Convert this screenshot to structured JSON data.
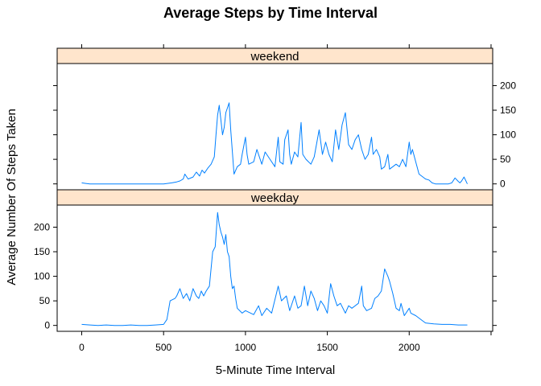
{
  "chart_data": {
    "type": "line",
    "title": "Average Steps by Time Interval",
    "xlabel": "5-Minute Time Interval",
    "ylabel": "Average Number Of Steps Taken",
    "xlim": [
      -150,
      2510
    ],
    "ylim": [
      -12,
      245
    ],
    "x_ticks": [
      0,
      500,
      1000,
      1500,
      2000
    ],
    "y_ticks": [
      0,
      50,
      100,
      150,
      200
    ],
    "grid": false,
    "colors": {
      "line": "#0080ff",
      "strip": "#ffe5cc"
    },
    "panels": [
      {
        "name": "weekend",
        "points": [
          [
            0,
            2
          ],
          [
            25,
            1
          ],
          [
            50,
            0
          ],
          [
            100,
            0
          ],
          [
            150,
            0
          ],
          [
            200,
            0
          ],
          [
            250,
            0
          ],
          [
            300,
            0
          ],
          [
            350,
            0
          ],
          [
            400,
            0
          ],
          [
            450,
            0
          ],
          [
            500,
            0
          ],
          [
            550,
            2
          ],
          [
            580,
            4
          ],
          [
            600,
            6
          ],
          [
            620,
            10
          ],
          [
            630,
            20
          ],
          [
            650,
            10
          ],
          [
            680,
            14
          ],
          [
            700,
            24
          ],
          [
            720,
            16
          ],
          [
            735,
            28
          ],
          [
            750,
            22
          ],
          [
            770,
            32
          ],
          [
            790,
            40
          ],
          [
            810,
            55
          ],
          [
            820,
            100
          ],
          [
            830,
            140
          ],
          [
            840,
            160
          ],
          [
            850,
            130
          ],
          [
            860,
            100
          ],
          [
            870,
            115
          ],
          [
            880,
            145
          ],
          [
            900,
            165
          ],
          [
            910,
            110
          ],
          [
            930,
            20
          ],
          [
            950,
            35
          ],
          [
            970,
            40
          ],
          [
            980,
            60
          ],
          [
            1000,
            95
          ],
          [
            1010,
            60
          ],
          [
            1020,
            40
          ],
          [
            1050,
            45
          ],
          [
            1070,
            70
          ],
          [
            1100,
            40
          ],
          [
            1120,
            65
          ],
          [
            1150,
            50
          ],
          [
            1180,
            35
          ],
          [
            1200,
            95
          ],
          [
            1210,
            45
          ],
          [
            1230,
            40
          ],
          [
            1240,
            90
          ],
          [
            1260,
            110
          ],
          [
            1270,
            60
          ],
          [
            1280,
            40
          ],
          [
            1300,
            65
          ],
          [
            1320,
            55
          ],
          [
            1340,
            125
          ],
          [
            1350,
            60
          ],
          [
            1370,
            50
          ],
          [
            1400,
            40
          ],
          [
            1420,
            55
          ],
          [
            1450,
            110
          ],
          [
            1470,
            60
          ],
          [
            1490,
            85
          ],
          [
            1510,
            60
          ],
          [
            1530,
            45
          ],
          [
            1550,
            110
          ],
          [
            1570,
            70
          ],
          [
            1590,
            120
          ],
          [
            1610,
            145
          ],
          [
            1630,
            80
          ],
          [
            1650,
            70
          ],
          [
            1670,
            90
          ],
          [
            1690,
            100
          ],
          [
            1710,
            70
          ],
          [
            1730,
            50
          ],
          [
            1750,
            60
          ],
          [
            1770,
            95
          ],
          [
            1780,
            60
          ],
          [
            1800,
            70
          ],
          [
            1820,
            55
          ],
          [
            1830,
            30
          ],
          [
            1850,
            35
          ],
          [
            1870,
            60
          ],
          [
            1880,
            30
          ],
          [
            1900,
            35
          ],
          [
            1920,
            40
          ],
          [
            1940,
            35
          ],
          [
            1960,
            50
          ],
          [
            1980,
            35
          ],
          [
            2000,
            85
          ],
          [
            2010,
            60
          ],
          [
            2020,
            70
          ],
          [
            2040,
            45
          ],
          [
            2060,
            20
          ],
          [
            2080,
            15
          ],
          [
            2100,
            10
          ],
          [
            2120,
            8
          ],
          [
            2140,
            2
          ],
          [
            2160,
            0
          ],
          [
            2200,
            0
          ],
          [
            2240,
            0
          ],
          [
            2260,
            2
          ],
          [
            2280,
            12
          ],
          [
            2300,
            5
          ],
          [
            2310,
            2
          ],
          [
            2320,
            6
          ],
          [
            2335,
            14
          ],
          [
            2355,
            0
          ]
        ]
      },
      {
        "name": "weekday",
        "points": [
          [
            0,
            2
          ],
          [
            50,
            1
          ],
          [
            100,
            0
          ],
          [
            150,
            1
          ],
          [
            200,
            0
          ],
          [
            250,
            0
          ],
          [
            300,
            1
          ],
          [
            350,
            0
          ],
          [
            400,
            0
          ],
          [
            450,
            1
          ],
          [
            500,
            2
          ],
          [
            520,
            12
          ],
          [
            540,
            50
          ],
          [
            570,
            55
          ],
          [
            580,
            60
          ],
          [
            600,
            75
          ],
          [
            620,
            55
          ],
          [
            640,
            65
          ],
          [
            660,
            50
          ],
          [
            680,
            75
          ],
          [
            700,
            60
          ],
          [
            715,
            55
          ],
          [
            730,
            70
          ],
          [
            745,
            60
          ],
          [
            760,
            70
          ],
          [
            780,
            80
          ],
          [
            800,
            150
          ],
          [
            815,
            160
          ],
          [
            830,
            230
          ],
          [
            840,
            205
          ],
          [
            850,
            190
          ],
          [
            860,
            180
          ],
          [
            870,
            165
          ],
          [
            880,
            185
          ],
          [
            890,
            150
          ],
          [
            900,
            140
          ],
          [
            910,
            100
          ],
          [
            920,
            75
          ],
          [
            930,
            80
          ],
          [
            940,
            55
          ],
          [
            950,
            35
          ],
          [
            980,
            25
          ],
          [
            1000,
            30
          ],
          [
            1050,
            22
          ],
          [
            1080,
            40
          ],
          [
            1100,
            20
          ],
          [
            1130,
            35
          ],
          [
            1160,
            25
          ],
          [
            1200,
            80
          ],
          [
            1220,
            50
          ],
          [
            1250,
            60
          ],
          [
            1270,
            30
          ],
          [
            1300,
            60
          ],
          [
            1320,
            35
          ],
          [
            1340,
            40
          ],
          [
            1360,
            80
          ],
          [
            1380,
            40
          ],
          [
            1400,
            70
          ],
          [
            1420,
            55
          ],
          [
            1440,
            30
          ],
          [
            1460,
            50
          ],
          [
            1480,
            40
          ],
          [
            1500,
            25
          ],
          [
            1520,
            85
          ],
          [
            1540,
            60
          ],
          [
            1560,
            40
          ],
          [
            1580,
            45
          ],
          [
            1610,
            25
          ],
          [
            1630,
            40
          ],
          [
            1650,
            35
          ],
          [
            1690,
            45
          ],
          [
            1710,
            80
          ],
          [
            1720,
            40
          ],
          [
            1740,
            30
          ],
          [
            1770,
            35
          ],
          [
            1790,
            55
          ],
          [
            1810,
            60
          ],
          [
            1830,
            70
          ],
          [
            1850,
            115
          ],
          [
            1870,
            100
          ],
          [
            1880,
            90
          ],
          [
            1900,
            65
          ],
          [
            1920,
            35
          ],
          [
            1940,
            30
          ],
          [
            1950,
            45
          ],
          [
            1970,
            20
          ],
          [
            2000,
            35
          ],
          [
            2010,
            25
          ],
          [
            2040,
            20
          ],
          [
            2080,
            10
          ],
          [
            2100,
            5
          ],
          [
            2150,
            3
          ],
          [
            2200,
            2
          ],
          [
            2250,
            2
          ],
          [
            2300,
            1
          ],
          [
            2355,
            1
          ]
        ]
      }
    ]
  }
}
